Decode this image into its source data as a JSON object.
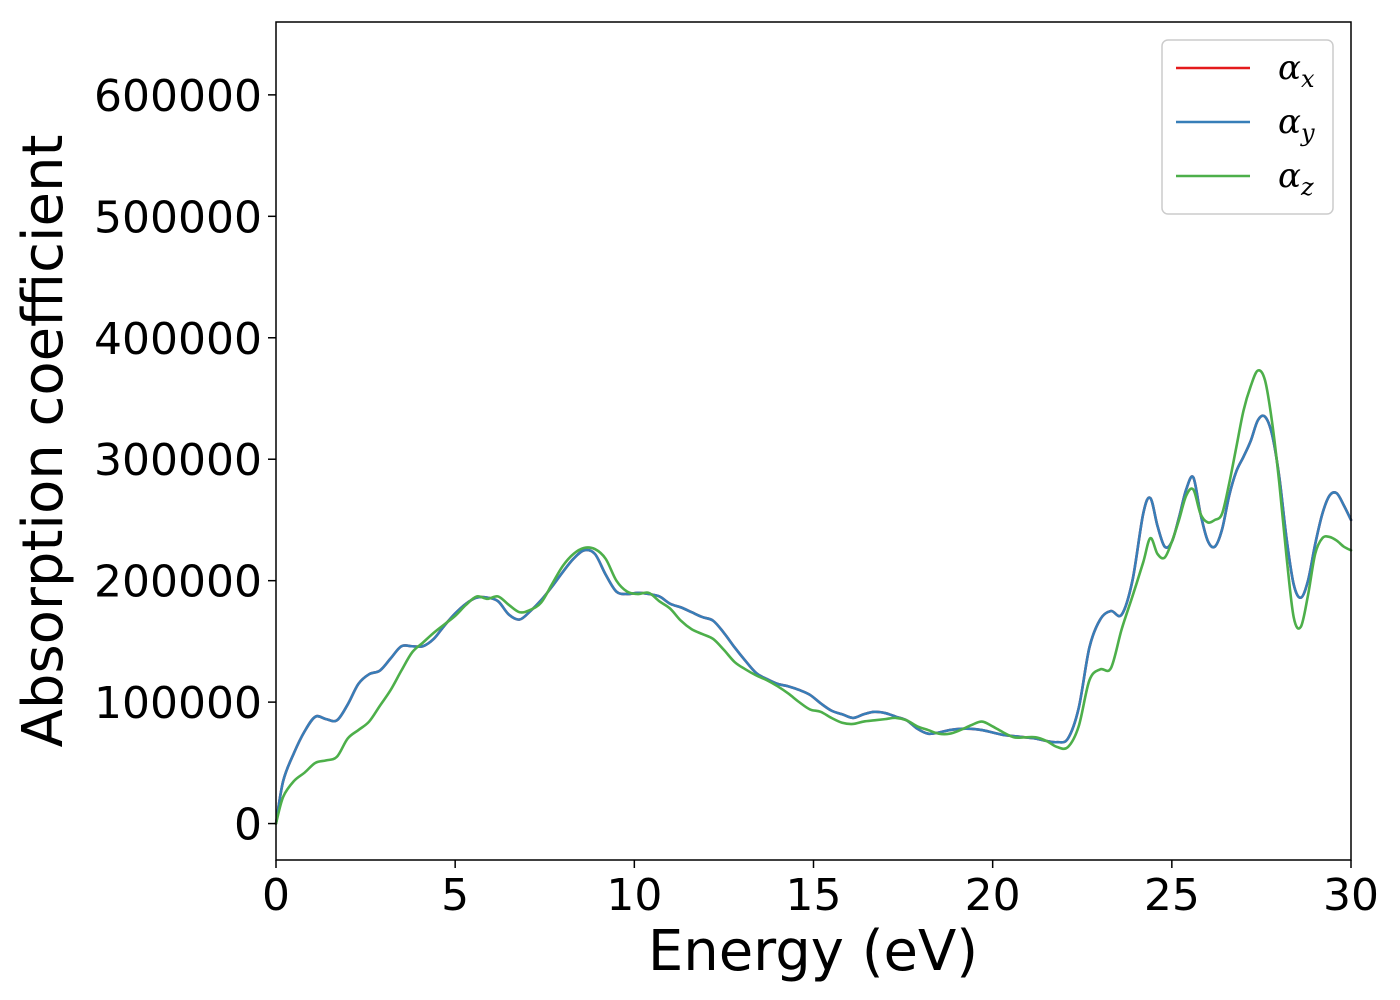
{
  "chart_data": {
    "type": "line",
    "title": "",
    "xlabel": "Energy (eV)",
    "ylabel": "Absorption coefficient",
    "xlim": [
      0,
      30
    ],
    "ylim": [
      -30000,
      660000
    ],
    "xticks": [
      0,
      5,
      10,
      15,
      20,
      25,
      30
    ],
    "xtick_labels": [
      "0",
      "5",
      "10",
      "15",
      "20",
      "25",
      "30"
    ],
    "yticks": [
      0,
      100000,
      200000,
      300000,
      400000,
      500000,
      600000
    ],
    "ytick_labels": [
      "0",
      "100000",
      "200000",
      "300000",
      "400000",
      "500000",
      "600000"
    ],
    "grid": false,
    "legend_position": "top-right",
    "series": [
      {
        "name": "α",
        "subscript": "x",
        "color": "#e41a1c",
        "x": [
          0,
          0.2,
          0.5,
          0.8,
          1.1,
          1.4,
          1.7,
          2.0,
          2.3,
          2.6,
          2.9,
          3.2,
          3.5,
          3.8,
          4.1,
          4.4,
          4.7,
          5.0,
          5.3,
          5.6,
          5.9,
          6.2,
          6.5,
          6.8,
          7.1,
          7.4,
          7.7,
          8.0,
          8.3,
          8.6,
          8.9,
          9.2,
          9.5,
          9.8,
          10.1,
          10.4,
          10.7,
          11.0,
          11.3,
          11.6,
          11.9,
          12.2,
          12.5,
          12.8,
          13.1,
          13.4,
          13.7,
          14.0,
          14.3,
          14.6,
          14.9,
          15.2,
          15.5,
          15.8,
          16.1,
          16.4,
          16.7,
          17.0,
          17.3,
          17.6,
          17.9,
          18.2,
          18.5,
          18.8,
          19.1,
          19.4,
          19.7,
          20.0,
          20.3,
          20.6,
          20.9,
          21.2,
          21.5,
          21.8,
          22.1,
          22.4,
          22.7,
          23.0,
          23.3,
          23.6,
          23.9,
          24.2,
          24.4,
          24.6,
          24.8,
          25.0,
          25.2,
          25.4,
          25.6,
          25.8,
          26.0,
          26.2,
          26.4,
          26.6,
          26.8,
          27.0,
          27.2,
          27.4,
          27.6,
          27.8,
          28.0,
          28.2,
          28.4,
          28.6,
          28.8,
          29.0,
          29.2,
          29.4,
          29.6,
          29.8,
          30.0
        ],
        "y": [
          0,
          35000,
          58000,
          76000,
          88000,
          86000,
          85000,
          98000,
          115000,
          123000,
          126000,
          136000,
          146000,
          146000,
          146000,
          152000,
          163000,
          173000,
          181000,
          186000,
          186000,
          183000,
          172000,
          168000,
          175000,
          184000,
          195000,
          207000,
          218000,
          225000,
          222000,
          205000,
          191000,
          189000,
          190000,
          189000,
          187000,
          181000,
          178000,
          174000,
          170000,
          167000,
          157000,
          145000,
          134000,
          124000,
          119000,
          115000,
          113000,
          110000,
          106000,
          99000,
          93000,
          90000,
          87000,
          90000,
          92000,
          91000,
          88000,
          85000,
          78000,
          74000,
          75000,
          77000,
          78000,
          78000,
          77000,
          75000,
          73000,
          72000,
          71000,
          70000,
          68000,
          67000,
          70000,
          95000,
          145000,
          168000,
          175000,
          172000,
          200000,
          255000,
          268000,
          245000,
          228000,
          232000,
          252000,
          275000,
          285000,
          255000,
          233000,
          228000,
          242000,
          270000,
          290000,
          302000,
          315000,
          332000,
          335000,
          320000,
          285000,
          235000,
          197000,
          186000,
          200000,
          230000,
          255000,
          270000,
          272000,
          262000,
          250000
        ]
      },
      {
        "name": "α",
        "subscript": "y",
        "color": "#377eb8",
        "x": [
          0,
          0.2,
          0.5,
          0.8,
          1.1,
          1.4,
          1.7,
          2.0,
          2.3,
          2.6,
          2.9,
          3.2,
          3.5,
          3.8,
          4.1,
          4.4,
          4.7,
          5.0,
          5.3,
          5.6,
          5.9,
          6.2,
          6.5,
          6.8,
          7.1,
          7.4,
          7.7,
          8.0,
          8.3,
          8.6,
          8.9,
          9.2,
          9.5,
          9.8,
          10.1,
          10.4,
          10.7,
          11.0,
          11.3,
          11.6,
          11.9,
          12.2,
          12.5,
          12.8,
          13.1,
          13.4,
          13.7,
          14.0,
          14.3,
          14.6,
          14.9,
          15.2,
          15.5,
          15.8,
          16.1,
          16.4,
          16.7,
          17.0,
          17.3,
          17.6,
          17.9,
          18.2,
          18.5,
          18.8,
          19.1,
          19.4,
          19.7,
          20.0,
          20.3,
          20.6,
          20.9,
          21.2,
          21.5,
          21.8,
          22.1,
          22.4,
          22.7,
          23.0,
          23.3,
          23.6,
          23.9,
          24.2,
          24.4,
          24.6,
          24.8,
          25.0,
          25.2,
          25.4,
          25.6,
          25.8,
          26.0,
          26.2,
          26.4,
          26.6,
          26.8,
          27.0,
          27.2,
          27.4,
          27.6,
          27.8,
          28.0,
          28.2,
          28.4,
          28.6,
          28.8,
          29.0,
          29.2,
          29.4,
          29.6,
          29.8,
          30.0
        ],
        "y": [
          0,
          35000,
          58000,
          76000,
          88000,
          86000,
          85000,
          98000,
          115000,
          123000,
          126000,
          136000,
          146000,
          146000,
          146000,
          152000,
          163000,
          173000,
          181000,
          186000,
          186000,
          183000,
          172000,
          168000,
          175000,
          184000,
          195000,
          207000,
          218000,
          225000,
          222000,
          205000,
          191000,
          189000,
          190000,
          189000,
          187000,
          181000,
          178000,
          174000,
          170000,
          167000,
          157000,
          145000,
          134000,
          124000,
          119000,
          115000,
          113000,
          110000,
          106000,
          99000,
          93000,
          90000,
          87000,
          90000,
          92000,
          91000,
          88000,
          85000,
          78000,
          74000,
          75000,
          77000,
          78000,
          78000,
          77000,
          75000,
          73000,
          72000,
          71000,
          70000,
          68000,
          67000,
          70000,
          95000,
          145000,
          168000,
          175000,
          172000,
          200000,
          255000,
          268000,
          245000,
          228000,
          232000,
          252000,
          275000,
          285000,
          255000,
          233000,
          228000,
          242000,
          270000,
          290000,
          302000,
          315000,
          332000,
          335000,
          320000,
          285000,
          235000,
          197000,
          186000,
          200000,
          230000,
          255000,
          270000,
          272000,
          262000,
          250000
        ]
      },
      {
        "name": "α",
        "subscript": "z",
        "color": "#4daf4a",
        "x": [
          0,
          0.2,
          0.5,
          0.8,
          1.1,
          1.4,
          1.7,
          2.0,
          2.3,
          2.6,
          2.9,
          3.2,
          3.5,
          3.8,
          4.1,
          4.4,
          4.7,
          5.0,
          5.3,
          5.6,
          5.9,
          6.2,
          6.5,
          6.8,
          7.1,
          7.4,
          7.7,
          8.0,
          8.3,
          8.6,
          8.9,
          9.2,
          9.5,
          9.8,
          10.1,
          10.4,
          10.7,
          11.0,
          11.3,
          11.6,
          11.9,
          12.2,
          12.5,
          12.8,
          13.1,
          13.4,
          13.7,
          14.0,
          14.3,
          14.6,
          14.9,
          15.2,
          15.5,
          15.8,
          16.1,
          16.4,
          16.7,
          17.0,
          17.3,
          17.6,
          17.9,
          18.2,
          18.5,
          18.8,
          19.1,
          19.4,
          19.7,
          20.0,
          20.3,
          20.6,
          20.9,
          21.2,
          21.5,
          21.8,
          22.1,
          22.4,
          22.7,
          23.0,
          23.3,
          23.6,
          23.9,
          24.2,
          24.4,
          24.6,
          24.8,
          25.0,
          25.2,
          25.4,
          25.6,
          25.8,
          26.0,
          26.2,
          26.4,
          26.6,
          26.8,
          27.0,
          27.2,
          27.4,
          27.6,
          27.8,
          28.0,
          28.2,
          28.4,
          28.6,
          28.8,
          29.0,
          29.2,
          29.4,
          29.6,
          29.8,
          30.0
        ],
        "y": [
          0,
          22000,
          35000,
          42000,
          50000,
          52000,
          55000,
          70000,
          77000,
          84000,
          97000,
          110000,
          126000,
          141000,
          149000,
          157000,
          164000,
          171000,
          180000,
          187000,
          185000,
          187000,
          180000,
          174000,
          176000,
          182000,
          197000,
          212000,
          222000,
          227000,
          226000,
          218000,
          200000,
          191000,
          189000,
          190000,
          183000,
          177000,
          167000,
          160000,
          156000,
          152000,
          143000,
          133000,
          127000,
          122000,
          118000,
          113000,
          107000,
          100000,
          94000,
          92000,
          87000,
          83000,
          82000,
          84000,
          85000,
          86000,
          87000,
          85000,
          80000,
          77000,
          74000,
          74000,
          77000,
          81000,
          84000,
          80000,
          75000,
          71000,
          71000,
          71000,
          68000,
          63000,
          63000,
          80000,
          118000,
          127000,
          128000,
          160000,
          187000,
          215000,
          235000,
          222000,
          219000,
          232000,
          250000,
          270000,
          275000,
          255000,
          248000,
          250000,
          255000,
          280000,
          310000,
          340000,
          360000,
          373000,
          365000,
          330000,
          280000,
          220000,
          170000,
          162000,
          188000,
          222000,
          235000,
          236000,
          233000,
          228000,
          225000
        ]
      }
    ]
  }
}
